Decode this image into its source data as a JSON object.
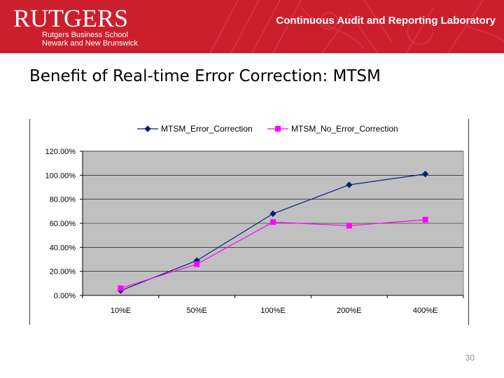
{
  "header": {
    "logo_word": "RUTGERS",
    "logo_sub_line1": "Rutgers Business School",
    "logo_sub_line2": "Newark and New Brunswick",
    "lab_name": "Continuous Audit and Reporting Laboratory",
    "bg_color": "#cc1f2d"
  },
  "slide": {
    "title": "Benefit of Real-time Error Correction: MTSM",
    "number": "30"
  },
  "chart_data": {
    "type": "line",
    "title": "",
    "xlabel": "",
    "ylabel": "",
    "categories": [
      "10%E",
      "50%E",
      "100%E",
      "200%E",
      "400%E"
    ],
    "ylim": [
      0,
      1.2
    ],
    "yticks": [
      0,
      0.2,
      0.4,
      0.6,
      0.8,
      1.0,
      1.2
    ],
    "ytick_labels": [
      "0.00%",
      "20.00%",
      "40.00%",
      "60.00%",
      "80.00%",
      "100.00%",
      "120.00%"
    ],
    "grid": "horizontal",
    "legend_position": "top",
    "plot_bg": "#c0c0c0",
    "series": [
      {
        "name": "MTSM_Error_Correction",
        "values": [
          0.04,
          0.29,
          0.68,
          0.92,
          1.01
        ],
        "color": "#0b1f7a",
        "marker": "diamond"
      },
      {
        "name": "MTSM_No_Error_Correction",
        "values": [
          0.06,
          0.26,
          0.61,
          0.58,
          0.63
        ],
        "color": "#ff00ff",
        "marker": "square"
      }
    ]
  }
}
